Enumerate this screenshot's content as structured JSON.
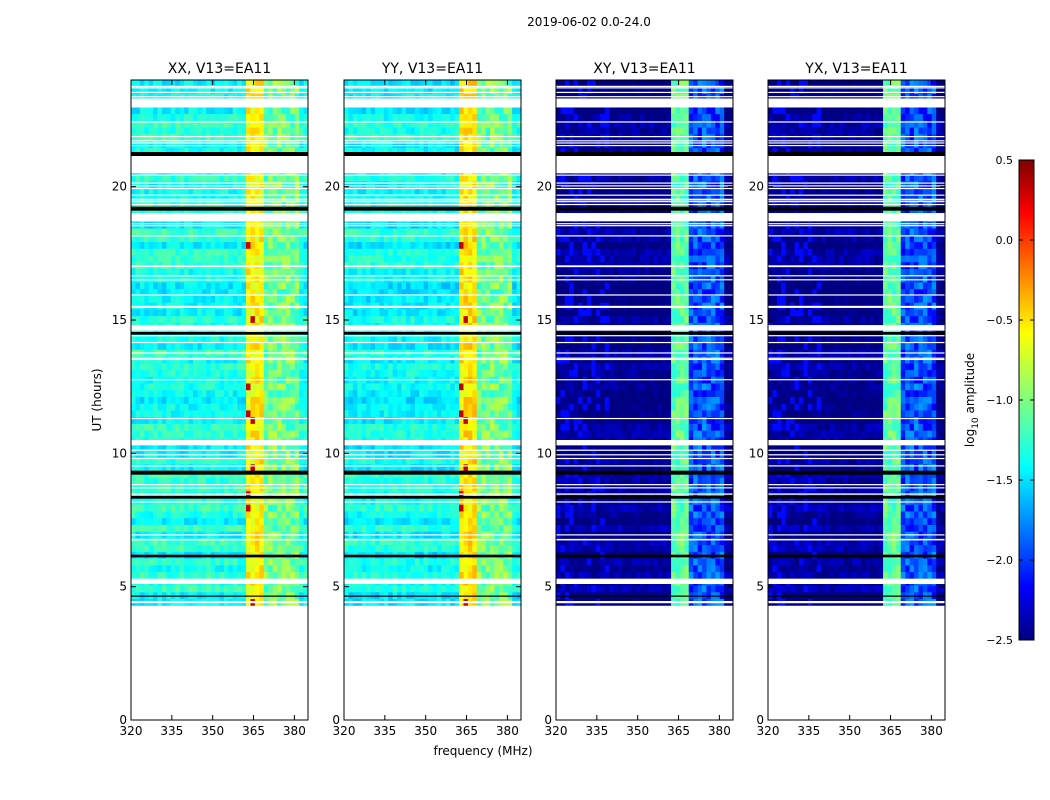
{
  "chart_data": {
    "type": "heatmap",
    "suptitle": "2019-06-02 0.0-24.0",
    "xlabel": "frequency (MHz)",
    "ylabel": "UT (hours)",
    "xlim": [
      320,
      385
    ],
    "ylim": [
      0,
      24
    ],
    "xticks": [
      "320",
      "335",
      "350",
      "365",
      "380"
    ],
    "yticks": [
      "0",
      "5",
      "10",
      "15",
      "20"
    ],
    "data_start_hour": 4.3,
    "panels": [
      {
        "title": "XX, V13=EA11",
        "base_level": -1.3,
        "hot_channels_MHz": [
          363.5,
          367.5
        ],
        "hot_level": -0.6
      },
      {
        "title": "YY, V13=EA11",
        "base_level": -1.35,
        "hot_channels_MHz": [
          363.5,
          367.5
        ],
        "hot_level": -0.55
      },
      {
        "title": "XY, V13=EA11",
        "base_level": -2.45,
        "hot_channels_MHz": [
          363.5,
          367.5
        ],
        "hot_level": -1.1
      },
      {
        "title": "YX, V13=EA11",
        "base_level": -2.45,
        "hot_channels_MHz": [
          363.5,
          367.5
        ],
        "hot_level": -1.1
      }
    ],
    "flagged_white_bands_hours": [
      [
        23.0,
        23.3
      ],
      [
        20.5,
        21.2
      ],
      [
        18.7,
        19.0
      ],
      [
        14.6,
        14.8
      ],
      [
        10.3,
        10.5
      ],
      [
        5.1,
        5.3
      ]
    ],
    "flagged_black_bands_hours": [
      [
        21.15,
        21.3
      ],
      [
        19.1,
        19.25
      ],
      [
        14.45,
        14.55
      ],
      [
        9.2,
        9.35
      ],
      [
        8.3,
        8.4
      ],
      [
        6.1,
        6.2
      ]
    ],
    "colorbar": {
      "label": "log10 amplitude",
      "label_main": "log",
      "label_sub": "10",
      "label_rest": " amplitude",
      "min": -2.5,
      "max": 0.5,
      "ticks": [
        "0.5",
        "0.0",
        "−0.5",
        "−1.0",
        "−1.5",
        "−2.0",
        "−2.5"
      ],
      "colormap": "jet"
    }
  }
}
